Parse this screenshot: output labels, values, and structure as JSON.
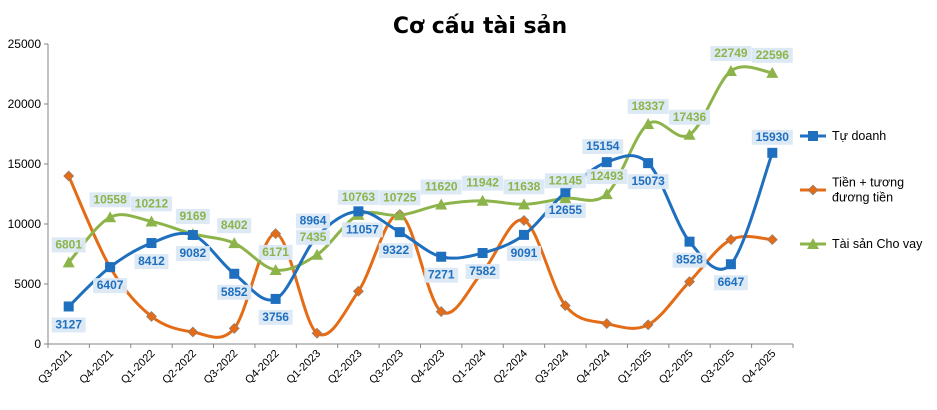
{
  "chart_data": {
    "type": "line",
    "title": "Cơ cấu tài sản",
    "xlabel": "",
    "ylabel": "",
    "ylim": [
      0,
      25000
    ],
    "yticks": [
      0,
      5000,
      10000,
      15000,
      20000,
      25000
    ],
    "grid": false,
    "legend_position": "right",
    "categories": [
      "Q3-2021",
      "Q4-2021",
      "Q1-2022",
      "Q2-2022",
      "Q3-2022",
      "Q4-2022",
      "Q1-2023",
      "Q2-2023",
      "Q3-2023",
      "Q4-2023",
      "Q1-2024",
      "Q2-2024",
      "Q3-2024",
      "Q4-2024",
      "Q1-2025",
      "Q2-2025",
      "Q3-2025",
      "Q4-2025"
    ],
    "series": [
      {
        "name": "Tự doanh",
        "color": "#1f6fbf",
        "marker": "square",
        "labels": true,
        "values": [
          3127,
          6407,
          8412,
          9082,
          5852,
          3756,
          8964,
          11057,
          9322,
          7271,
          7582,
          9091,
          12655,
          15154,
          15073,
          8528,
          6647,
          15930
        ]
      },
      {
        "name": "Tiền  + tương đương tiền",
        "legend_lines": [
          "Tiền  + tương",
          "đương tiền"
        ],
        "color": "#e46c17",
        "marker": "diamond",
        "labels": false,
        "values": [
          14000,
          6400,
          2300,
          1000,
          1300,
          9200,
          900,
          4400,
          10800,
          2700,
          6000,
          10300,
          3200,
          1700,
          1600,
          5200,
          8700,
          8700
        ]
      },
      {
        "name": "Tài sản Cho vay",
        "color": "#8db44a",
        "marker": "triangle",
        "labels": true,
        "values": [
          6801,
          10558,
          10212,
          9169,
          8402,
          6171,
          7435,
          10763,
          10725,
          11620,
          11942,
          11638,
          12145,
          12493,
          18337,
          17436,
          22749,
          22596
        ]
      }
    ]
  }
}
